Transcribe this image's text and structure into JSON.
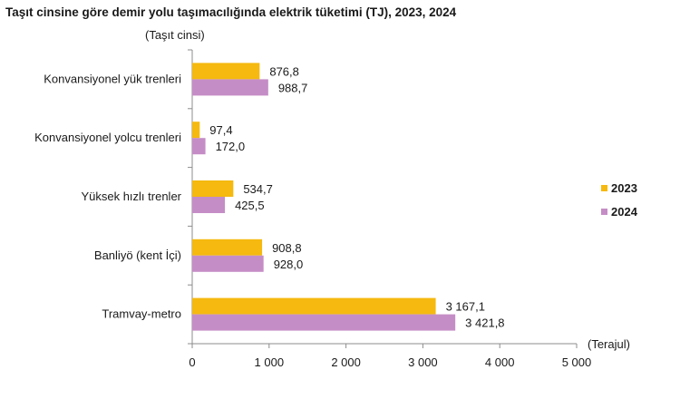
{
  "chart_data": {
    "type": "bar",
    "orientation": "horizontal",
    "title": "Taşıt cinsine göre demir yolu taşımacılığında elektrik tüketimi (TJ), 2023, 2024",
    "ylabel": "(Taşıt cinsi)",
    "xlabel": "(Terajul)",
    "categories": [
      "Konvansiyonel yük trenleri",
      "Konvansiyonel yolcu trenleri",
      "Yüksek hızlı trenler",
      "Banliyö (kent İçi)",
      "Tramvay-metro"
    ],
    "series": [
      {
        "name": "2023",
        "color": "#F5B90F",
        "values": [
          876.8,
          97.4,
          534.7,
          908.8,
          3167.1
        ],
        "labels": [
          "876,8",
          "97,4",
          "534,7",
          "908,8",
          "3 167,1"
        ]
      },
      {
        "name": "2024",
        "color": "#C58DC6",
        "values": [
          988.7,
          172.0,
          425.5,
          928.0,
          3421.8
        ],
        "labels": [
          "988,7",
          "172,0",
          "425,5",
          "928,0",
          "3 421,8"
        ]
      }
    ],
    "xlim": [
      0,
      5000
    ],
    "xticks": [
      0,
      1000,
      2000,
      3000,
      4000,
      5000
    ],
    "xtick_labels": [
      "0",
      "1 000",
      "2 000",
      "3 000",
      "4 000",
      "5 000"
    ],
    "legend_position": "right",
    "grid": false
  }
}
